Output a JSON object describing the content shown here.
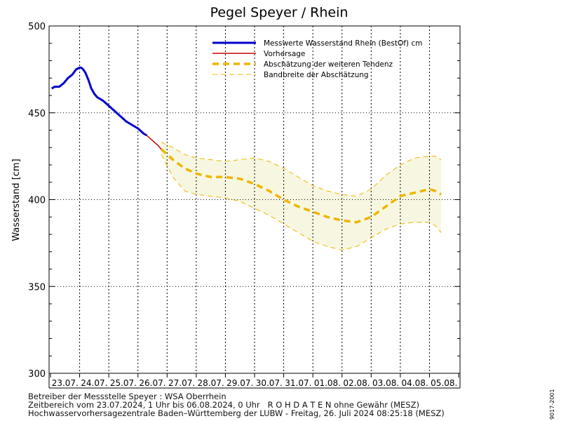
{
  "chart_data": {
    "type": "line",
    "title": "Pegel Speyer / Rhein",
    "ylabel": "Wasserstand [cm]",
    "xlabel": "",
    "ylim": [
      300,
      500
    ],
    "yticks": [
      300,
      350,
      400,
      450,
      500
    ],
    "grid": true,
    "legend_position": "top-right",
    "day_labels": [
      "23.07.",
      "24.07.",
      "25.07.",
      "26.07.",
      "27.07.",
      "28.07.",
      "29.07.",
      "30.07.",
      "31.07.",
      "01.08.",
      "02.08.",
      "03.08.",
      "04.08.",
      "05.08."
    ],
    "x_unit": "days since 23.07.2024 00:00",
    "series": [
      {
        "name": "Messwerte Wasserstand Rhein (BestOf)  cm",
        "style": "solid-thick",
        "color": "#0000cc",
        "x": [
          0.04,
          0.15,
          0.3,
          0.45,
          0.6,
          0.75,
          0.88,
          1.0,
          1.05,
          1.12,
          1.2,
          1.3,
          1.4,
          1.5,
          1.6,
          1.8,
          2.0,
          2.2,
          2.4,
          2.6,
          2.8,
          3.0,
          3.2,
          3.3
        ],
        "y": [
          464,
          465,
          465,
          467,
          470,
          472,
          475,
          476,
          476,
          475,
          473,
          469,
          464,
          461,
          459,
          457,
          454,
          451,
          448,
          445,
          443,
          441,
          438,
          437
        ]
      },
      {
        "name": "Vorhersage",
        "style": "solid-thin",
        "color": "#cc0000",
        "x": [
          3.3,
          3.5,
          3.7,
          3.8
        ],
        "y": [
          437,
          434,
          431,
          429
        ]
      },
      {
        "name": "Abschätzung der weiteren Tendenz",
        "style": "dashed-thick",
        "color": "#f0b400",
        "x": [
          3.8,
          4.2,
          4.6,
          5.0,
          5.5,
          6.0,
          6.5,
          7.0,
          7.5,
          8.0,
          8.5,
          9.0,
          9.5,
          10.0,
          10.5,
          11.0,
          11.5,
          12.0,
          12.5,
          13.0,
          13.2,
          13.4
        ],
        "y": [
          429,
          423,
          418,
          415,
          413,
          413,
          412,
          409,
          405,
          400,
          396,
          393,
          390,
          388,
          387,
          390,
          396,
          402,
          404,
          406,
          405,
          403
        ]
      },
      {
        "name": "Bandbreite der Abschätzung",
        "style": "dashed-thin",
        "color": "#f0b400",
        "upper": {
          "x": [
            3.8,
            4.2,
            4.6,
            5.0,
            5.5,
            6.0,
            6.5,
            7.0,
            7.5,
            8.0,
            8.5,
            9.0,
            9.5,
            10.0,
            10.5,
            11.0,
            11.5,
            12.0,
            12.5,
            13.0,
            13.2,
            13.4
          ],
          "y": [
            433,
            430,
            426,
            424,
            423,
            422,
            423,
            424,
            422,
            418,
            413,
            408,
            405,
            403,
            402,
            406,
            414,
            420,
            424,
            425,
            425,
            423
          ]
        },
        "lower": {
          "x": [
            3.8,
            4.2,
            4.6,
            5.0,
            5.5,
            6.0,
            6.5,
            7.0,
            7.5,
            8.0,
            8.5,
            9.0,
            9.5,
            10.0,
            10.5,
            11.0,
            11.5,
            12.0,
            12.5,
            13.0,
            13.2,
            13.4
          ],
          "y": [
            426,
            413,
            405,
            403,
            402,
            401,
            399,
            395,
            391,
            386,
            381,
            376,
            373,
            371,
            373,
            378,
            383,
            386,
            387,
            387,
            385,
            381
          ]
        }
      }
    ]
  },
  "colors": {
    "band_fill": "#f7f7e1",
    "grid": "#000000"
  },
  "footer": {
    "line1": "Betreiber der Messstelle Speyer : WSA Oberrhein",
    "line2": "Zeitbereich vom 23.07.2024, 1 Uhr bis 06.08.2024, 0 Uhr   R O H D A T E N ohne Gewähr (MESZ)",
    "line3": "Hochwasservorhersagezentrale Baden–Württemberg der LUBW - Freitag, 26. Juli 2024 08:25:18 (MESZ)"
  },
  "side_code": "9017-2001"
}
